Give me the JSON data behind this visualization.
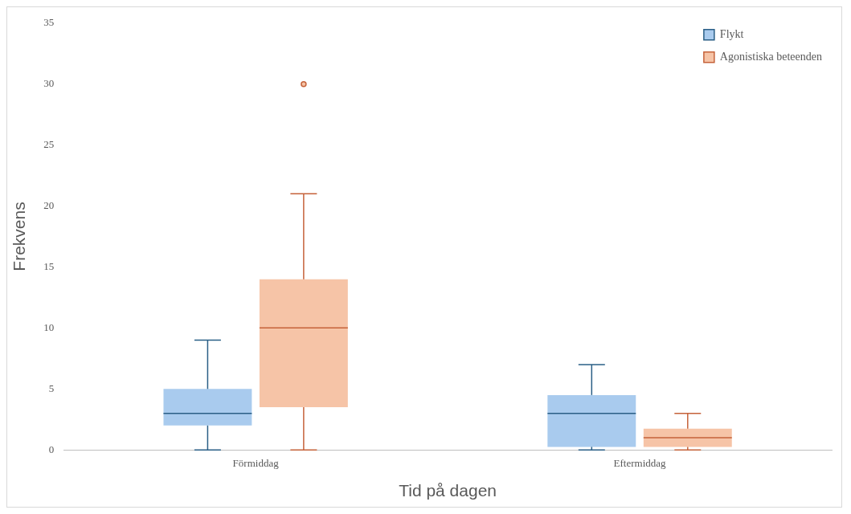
{
  "chart_data": {
    "type": "box",
    "xlabel": "Tid på dagen",
    "ylabel": "Frekvens",
    "categories": [
      "Förmiddag",
      "Eftermiddag"
    ],
    "ylim": [
      0,
      35
    ],
    "yticks": [
      0,
      5,
      10,
      15,
      20,
      25,
      30,
      35
    ],
    "grid": false,
    "legend": "top right",
    "series": [
      {
        "name": "Flykt",
        "color": "#a9cbee",
        "boxes": [
          {
            "low": 0,
            "q1": 2,
            "median": 3,
            "q3": 5,
            "high": 9
          },
          {
            "low": 0,
            "q1": 0.25,
            "median": 3,
            "q3": 4.5,
            "high": 7
          }
        ]
      },
      {
        "name": "Agonistiska beteenden",
        "color": "#f6c4a7",
        "boxes": [
          {
            "low": 0,
            "q1": 3.5,
            "median": 10,
            "q3": 14,
            "high": 21,
            "outliers": [
              30
            ]
          },
          {
            "low": 0,
            "q1": 0.25,
            "median": 1,
            "q3": 1.75,
            "high": 3
          }
        ]
      }
    ]
  }
}
